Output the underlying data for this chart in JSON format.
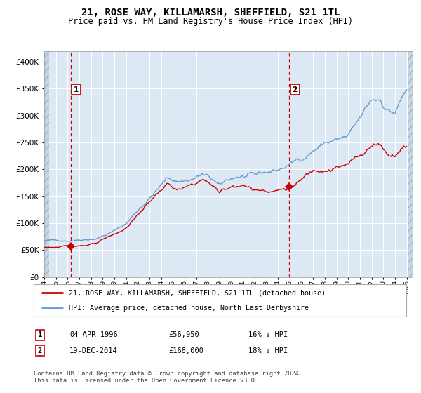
{
  "title": "21, ROSE WAY, KILLAMARSH, SHEFFIELD, S21 1TL",
  "subtitle": "Price paid vs. HM Land Registry's House Price Index (HPI)",
  "sale1_date": "04-APR-1996",
  "sale1_price": 56950,
  "sale1_pct": "16% ↓ HPI",
  "sale1_year": 1996.26,
  "sale2_date": "19-DEC-2014",
  "sale2_price": 168000,
  "sale2_pct": "18% ↓ HPI",
  "sale2_year": 2014.96,
  "legend_line1": "21, ROSE WAY, KILLAMARSH, SHEFFIELD, S21 1TL (detached house)",
  "legend_line2": "HPI: Average price, detached house, North East Derbyshire",
  "footer": "Contains HM Land Registry data © Crown copyright and database right 2024.\nThis data is licensed under the Open Government Licence v3.0.",
  "hpi_color": "#6699cc",
  "price_color": "#cc0000",
  "bg_color": "#dce9f5",
  "grid_color": "#ffffff",
  "dashed_line_color": "#cc0000",
  "ylim_max": 420000,
  "title_fontsize": 10,
  "subtitle_fontsize": 8.5
}
